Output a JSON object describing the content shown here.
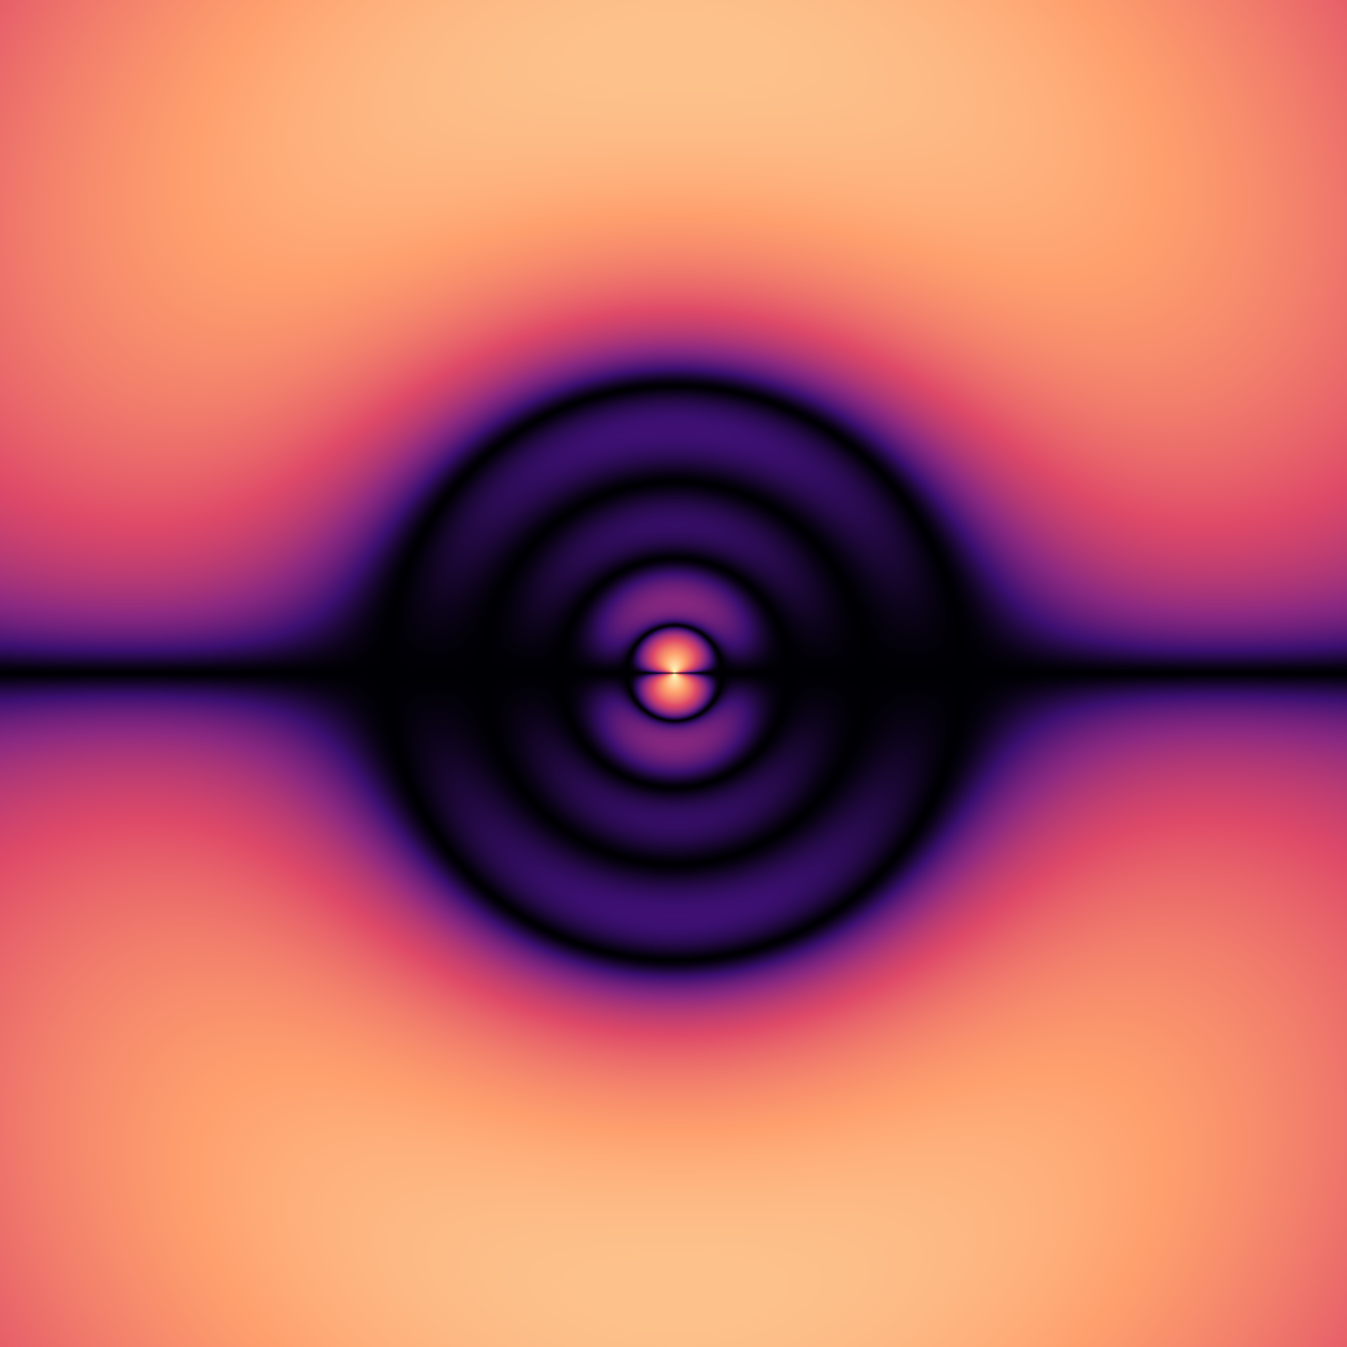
{
  "scene": {
    "subject": "orbital-probability-density",
    "background_color": "#000000",
    "colormap": "magma",
    "colormap_stops": [
      "#000004",
      "#3b0f70",
      "#8c2981",
      "#de4968",
      "#fe9f6d",
      "#fcfdbf"
    ],
    "radial_node_count": 4,
    "angular_node": "horizontal-plane",
    "lobes": [
      "upper",
      "lower"
    ]
  }
}
